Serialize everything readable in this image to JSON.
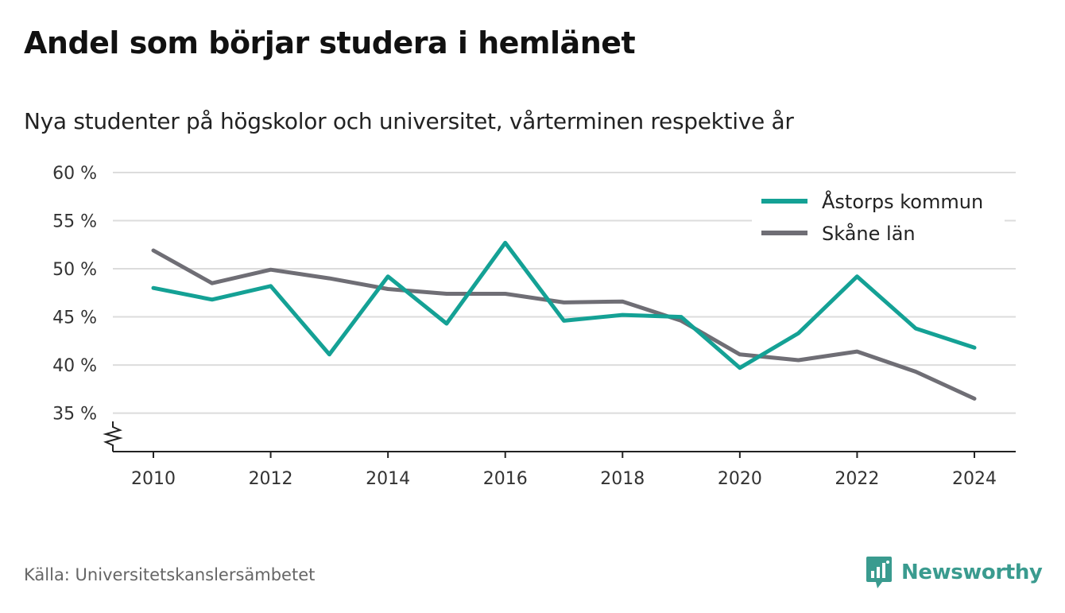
{
  "title": "Andel som börjar studera i hemlänet",
  "subtitle": "Nya studenter på högskolor och universitet, vårterminen respektive år",
  "source": "Källa: Universitetskanslersämbetet",
  "brand": {
    "name": "Newsworthy",
    "icon": "newsworthy-logo-icon",
    "color": "#3a9b8f"
  },
  "chart_data": {
    "type": "line",
    "x": [
      2010,
      2011,
      2012,
      2013,
      2014,
      2015,
      2016,
      2017,
      2018,
      2019,
      2020,
      2021,
      2022,
      2023,
      2024
    ],
    "x_ticks": [
      "2010",
      "2012",
      "2014",
      "2016",
      "2018",
      "2020",
      "2022",
      "2024"
    ],
    "y_ticks": [
      "35 %",
      "40 %",
      "45 %",
      "50 %",
      "55 %",
      "60 %"
    ],
    "ylim": [
      31,
      60
    ],
    "y_axis_break": true,
    "grid": true,
    "legend_position": "top-right",
    "series": [
      {
        "name": "Åstorps kommun",
        "color": "#14a195",
        "values": [
          48.0,
          46.8,
          48.2,
          41.1,
          49.2,
          44.3,
          52.7,
          44.6,
          45.2,
          45.0,
          39.7,
          43.3,
          49.2,
          43.8,
          41.8
        ]
      },
      {
        "name": "Skåne län",
        "color": "#6f6e75",
        "values": [
          51.9,
          48.5,
          49.9,
          49.0,
          47.9,
          47.4,
          47.4,
          46.5,
          46.6,
          44.6,
          41.1,
          40.5,
          41.4,
          39.3,
          36.5
        ]
      }
    ]
  }
}
